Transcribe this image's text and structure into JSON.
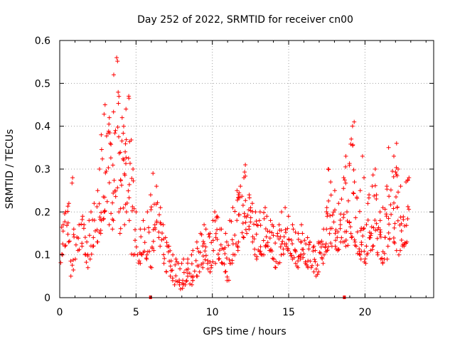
{
  "chart_data": {
    "type": "scatter",
    "title": "Day 252 of 2022, SRMTID for receiver cn00",
    "xlabel": "GPS time / hours",
    "ylabel": "SRMTID / TECUs",
    "xlim": [
      0,
      24.5
    ],
    "ylim": [
      0,
      0.6
    ],
    "x_ticks": [
      0,
      5,
      10,
      15,
      20
    ],
    "x_tick_labels": [
      "0",
      "5",
      "10",
      "15",
      "20"
    ],
    "y_ticks": [
      0,
      0.1,
      0.2,
      0.3,
      0.4,
      0.5,
      0.6
    ],
    "y_tick_labels": [
      "0",
      "0.1",
      "0.2",
      "0.3",
      "0.4",
      "0.5",
      "0.6"
    ],
    "grid": true,
    "marker": "+",
    "color": "#ff0000",
    "series": [
      {
        "name": "SRMTID",
        "x": [
          0.0,
          0.2,
          0.4,
          0.6,
          0.8,
          1.0,
          1.2,
          1.4,
          1.6,
          1.8,
          2.0,
          2.2,
          2.4,
          2.6,
          2.8,
          3.0,
          3.2,
          3.4,
          3.6,
          3.8,
          4.0,
          4.2,
          4.4,
          4.6,
          4.8,
          5.0,
          5.2,
          5.4,
          5.6,
          5.8,
          6.0,
          6.2,
          6.4,
          6.6,
          6.8,
          7.0,
          7.2,
          7.4,
          7.6,
          7.8,
          8.0,
          8.2,
          8.4,
          8.6,
          8.8,
          9.0,
          9.2,
          9.4,
          9.6,
          9.8,
          10.0,
          10.2,
          10.4,
          10.6,
          10.8,
          11.0,
          11.2,
          11.4,
          11.6,
          11.8,
          12.0,
          12.2,
          12.4,
          12.6,
          12.8,
          13.0,
          13.2,
          13.4,
          13.6,
          13.8,
          14.0,
          14.2,
          14.4,
          14.6,
          14.8,
          15.0,
          15.2,
          15.4,
          15.6,
          15.8,
          16.0,
          16.2,
          16.4,
          16.6,
          16.8,
          17.0,
          17.2,
          17.4,
          17.6,
          17.8,
          18.0,
          18.2,
          18.4,
          18.6,
          18.8,
          19.0,
          19.2,
          19.4,
          19.6,
          19.8,
          20.0,
          20.2,
          20.4,
          20.6,
          20.8,
          21.0,
          21.2,
          21.4,
          21.6,
          21.8,
          22.0,
          22.2,
          22.4,
          22.6,
          22.8
        ],
        "low": [
          0.08,
          0.1,
          0.12,
          0.13,
          0.05,
          0.09,
          0.11,
          0.12,
          0.1,
          0.07,
          0.09,
          0.12,
          0.13,
          0.15,
          0.18,
          0.2,
          0.17,
          0.16,
          0.18,
          0.2,
          0.15,
          0.17,
          0.2,
          0.18,
          0.1,
          0.1,
          0.08,
          0.1,
          0.09,
          0.1,
          0.07,
          0.11,
          0.14,
          0.12,
          0.08,
          0.06,
          0.05,
          0.04,
          0.03,
          0.03,
          0.02,
          0.03,
          0.04,
          0.03,
          0.04,
          0.05,
          0.06,
          0.07,
          0.08,
          0.06,
          0.07,
          0.08,
          0.09,
          0.08,
          0.06,
          0.04,
          0.08,
          0.1,
          0.11,
          0.13,
          0.14,
          0.15,
          0.16,
          0.13,
          0.1,
          0.09,
          0.1,
          0.1,
          0.12,
          0.11,
          0.09,
          0.07,
          0.08,
          0.1,
          0.12,
          0.11,
          0.09,
          0.08,
          0.07,
          0.09,
          0.08,
          0.07,
          0.07,
          0.06,
          0.05,
          0.06,
          0.08,
          0.1,
          0.11,
          0.12,
          0.12,
          0.11,
          0.13,
          0.13,
          0.12,
          0.15,
          0.14,
          0.12,
          0.1,
          0.09,
          0.08,
          0.1,
          0.11,
          0.12,
          0.1,
          0.09,
          0.08,
          0.09,
          0.12,
          0.13,
          0.11,
          0.1,
          0.11,
          0.12,
          0.13
        ],
        "high": [
          0.14,
          0.17,
          0.2,
          0.22,
          0.28,
          0.16,
          0.17,
          0.19,
          0.17,
          0.13,
          0.2,
          0.22,
          0.25,
          0.3,
          0.38,
          0.45,
          0.42,
          0.36,
          0.52,
          0.56,
          0.42,
          0.4,
          0.44,
          0.47,
          0.3,
          0.2,
          0.16,
          0.18,
          0.16,
          0.2,
          0.24,
          0.29,
          0.26,
          0.21,
          0.17,
          0.14,
          0.12,
          0.1,
          0.09,
          0.08,
          0.08,
          0.09,
          0.09,
          0.1,
          0.11,
          0.13,
          0.15,
          0.17,
          0.16,
          0.15,
          0.18,
          0.2,
          0.19,
          0.16,
          0.15,
          0.13,
          0.18,
          0.21,
          0.25,
          0.26,
          0.28,
          0.31,
          0.24,
          0.22,
          0.2,
          0.18,
          0.2,
          0.21,
          0.19,
          0.18,
          0.17,
          0.15,
          0.17,
          0.2,
          0.21,
          0.19,
          0.17,
          0.16,
          0.15,
          0.17,
          0.15,
          0.14,
          0.13,
          0.12,
          0.11,
          0.13,
          0.16,
          0.21,
          0.3,
          0.27,
          0.25,
          0.22,
          0.23,
          0.28,
          0.33,
          0.37,
          0.41,
          0.27,
          0.25,
          0.33,
          0.28,
          0.24,
          0.26,
          0.3,
          0.24,
          0.2,
          0.21,
          0.26,
          0.35,
          0.33,
          0.36,
          0.3,
          0.26,
          0.27,
          0.28
        ],
        "counts": [
          5,
          6,
          6,
          7,
          7,
          5,
          5,
          5,
          5,
          5,
          6,
          6,
          6,
          7,
          8,
          9,
          9,
          8,
          10,
          10,
          9,
          9,
          9,
          9,
          8,
          6,
          5,
          5,
          5,
          6,
          7,
          8,
          7,
          6,
          6,
          6,
          6,
          6,
          6,
          6,
          6,
          6,
          6,
          6,
          6,
          6,
          7,
          7,
          7,
          7,
          7,
          7,
          7,
          7,
          7,
          6,
          7,
          7,
          8,
          8,
          8,
          9,
          7,
          7,
          7,
          7,
          7,
          7,
          7,
          7,
          7,
          6,
          7,
          7,
          7,
          7,
          7,
          7,
          7,
          7,
          7,
          6,
          6,
          6,
          6,
          6,
          7,
          8,
          9,
          8,
          8,
          7,
          7,
          8,
          9,
          9,
          9,
          8,
          8,
          9,
          8,
          8,
          8,
          9,
          8,
          7,
          7,
          8,
          9,
          9,
          9,
          8,
          8,
          8,
          8
        ]
      }
    ],
    "bottom_markers": [
      {
        "x": 5.95,
        "y": 0
      },
      {
        "x": 18.65,
        "y": 0
      }
    ]
  }
}
